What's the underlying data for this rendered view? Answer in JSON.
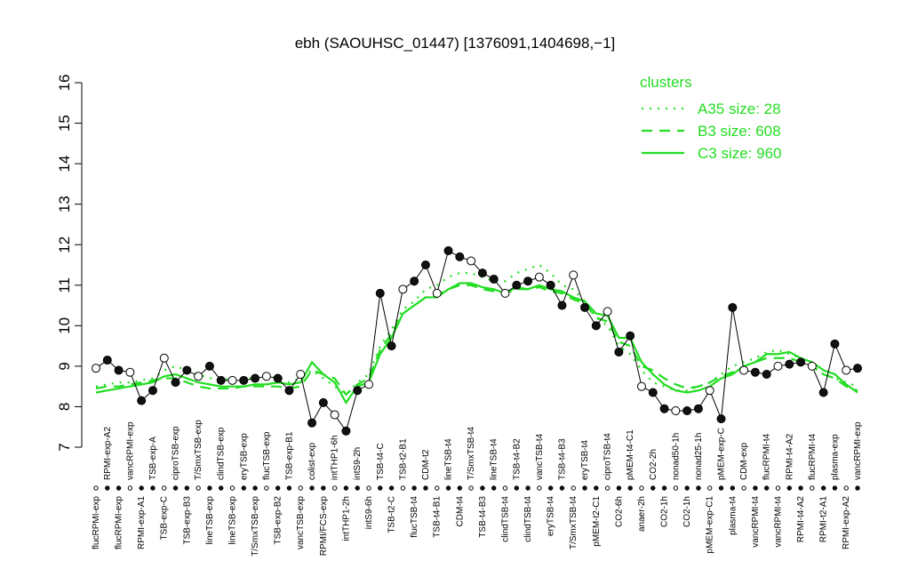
{
  "chart_data": {
    "type": "line",
    "title": "ebh (SAOUHSC_01447) [1376091,1404698,−1]",
    "ylim": [
      7,
      16
    ],
    "yticks": [
      7,
      8,
      9,
      10,
      11,
      12,
      13,
      14,
      15,
      16
    ],
    "color": "#000000",
    "categories": [
      "flucRPMI-exp",
      "RPMI-exp-A2",
      "flucRPMI-exp",
      "vancRPMI-exp",
      "RPMI-exp-A1",
      "TSB-exp-A",
      "TSB-exp-C",
      "ciproTSB-exp",
      "TSB-exp-B3",
      "T/SmxTSB-exp",
      "lineTSB-exp",
      "clindTSB-exp",
      "lineTSB-exp",
      "eryTSB-exp",
      "T/SmxTSB-exp",
      "flucTSB-exp",
      "TSB-exp-B2",
      "TSB-exp-B1",
      "vancTSB-exp",
      "colist-exp",
      "RPMI/FCS-exp",
      "intTHP1-6h",
      "intTHP1-2h",
      "intS9-2h",
      "intS9-6h",
      "TSB-t4-C",
      "TSB-t2-C",
      "TSB-t2-B1",
      "flucTSB-t4",
      "CDM-t2",
      "TSB-t4-B1",
      "lineTSB-t4",
      "CDM-t4",
      "T/SmxTSB-t4",
      "TSB-t4-B3",
      "lineTSB-t4",
      "clindTSB-t4",
      "TSB-t4-B2",
      "clindTSB-t4",
      "vancTSB-t4",
      "eryTSB-t4",
      "TSB-t4-B3",
      "T/SmxTSB-t4",
      "eryTSB-t4",
      "pMEM-t2-C1",
      "ciproTSB-t4",
      "CO2-6h",
      "pMEM-t4-C1",
      "anaer-2h",
      "CO2-2h",
      "CO2-1h",
      "nonad50-1h",
      "CO2-1h",
      "nonad25-1h",
      "pMEM-exp-C1",
      "pMEM-exp-C",
      "plasma-t4",
      "CDM-exp",
      "vancRPMI-t4",
      "flucRPMI-t4",
      "vancRPMI-t4",
      "RPMI-t4-A2",
      "RPMI-t4-A2",
      "flucRPMI-t4",
      "RPMI-t2-A1",
      "plasma-exp",
      "RPMI-exp-A2",
      "vancRPMI-exp"
    ],
    "values": [
      8.95,
      9.15,
      8.9,
      8.85,
      8.15,
      8.4,
      9.2,
      8.6,
      8.9,
      8.75,
      9.0,
      8.65,
      8.65,
      8.65,
      8.7,
      8.75,
      8.7,
      8.4,
      8.8,
      7.6,
      8.1,
      7.8,
      7.4,
      8.4,
      8.55,
      10.8,
      9.5,
      10.9,
      11.1,
      11.5,
      10.8,
      11.85,
      11.7,
      11.6,
      11.3,
      11.15,
      10.8,
      11.0,
      11.1,
      11.2,
      11.0,
      10.5,
      11.25,
      10.45,
      10.0,
      10.35,
      9.35,
      9.75,
      8.5,
      8.35,
      7.95,
      7.9,
      7.9,
      7.95,
      8.4,
      7.7,
      10.45,
      8.9,
      8.85,
      8.8,
      9.0,
      9.05,
      9.1,
      9.0,
      8.35,
      9.55,
      8.9,
      8.95
    ],
    "legend_title": "clusters",
    "series": [
      {
        "name": "A35 size: 28",
        "color": "#22dd22",
        "dash": "dotted",
        "values": [
          8.5,
          8.55,
          8.6,
          8.6,
          8.65,
          8.7,
          8.9,
          9.0,
          8.9,
          8.8,
          8.7,
          8.7,
          8.65,
          8.7,
          8.7,
          8.7,
          8.75,
          8.6,
          8.7,
          8.9,
          8.7,
          8.5,
          8.3,
          8.6,
          8.8,
          9.5,
          9.9,
          10.4,
          10.6,
          10.9,
          11.0,
          11.2,
          11.3,
          11.3,
          11.2,
          11.1,
          11.1,
          11.3,
          11.4,
          11.5,
          11.3,
          11.0,
          10.9,
          10.6,
          10.2,
          10.0,
          9.5,
          9.3,
          8.9,
          8.6,
          8.5,
          8.4,
          8.4,
          8.5,
          8.6,
          8.8,
          9.0,
          9.1,
          9.2,
          9.35,
          9.4,
          9.3,
          9.2,
          9.0,
          8.8,
          8.7,
          8.6,
          8.5
        ]
      },
      {
        "name": "B3 size: 608",
        "color": "#22dd22",
        "dash": "dashed",
        "values": [
          8.45,
          8.5,
          8.5,
          8.55,
          8.6,
          8.65,
          8.7,
          8.7,
          8.6,
          8.5,
          8.45,
          8.45,
          8.45,
          8.5,
          8.5,
          8.5,
          8.5,
          8.45,
          8.5,
          8.9,
          8.8,
          8.7,
          8.3,
          8.55,
          8.7,
          9.4,
          9.8,
          10.3,
          10.5,
          10.7,
          10.75,
          10.9,
          11.0,
          11.0,
          10.9,
          10.85,
          10.8,
          10.9,
          10.9,
          10.95,
          10.85,
          10.8,
          10.65,
          10.55,
          10.2,
          10.1,
          9.6,
          9.5,
          9.0,
          8.9,
          8.7,
          8.55,
          8.45,
          8.5,
          8.6,
          8.75,
          8.85,
          9.0,
          9.1,
          9.2,
          9.2,
          9.2,
          9.1,
          9.0,
          8.8,
          8.7,
          8.5,
          8.4
        ]
      },
      {
        "name": "C3 size: 960",
        "color": "#22dd22",
        "dash": "solid",
        "values": [
          8.35,
          8.4,
          8.45,
          8.5,
          8.55,
          8.6,
          8.75,
          8.8,
          8.7,
          8.6,
          8.55,
          8.5,
          8.5,
          8.5,
          8.55,
          8.55,
          8.6,
          8.55,
          8.6,
          9.1,
          8.8,
          8.6,
          8.1,
          8.5,
          8.6,
          9.3,
          9.7,
          10.3,
          10.5,
          10.7,
          10.7,
          10.9,
          11.05,
          11.05,
          10.95,
          10.9,
          10.8,
          10.95,
          10.9,
          11.0,
          10.9,
          10.85,
          10.7,
          10.6,
          10.3,
          10.25,
          9.7,
          9.7,
          9.1,
          8.8,
          8.55,
          8.4,
          8.35,
          8.4,
          8.5,
          8.7,
          8.8,
          9.0,
          9.1,
          9.3,
          9.3,
          9.35,
          9.2,
          9.1,
          8.9,
          8.8,
          8.55,
          8.35
        ]
      }
    ]
  }
}
